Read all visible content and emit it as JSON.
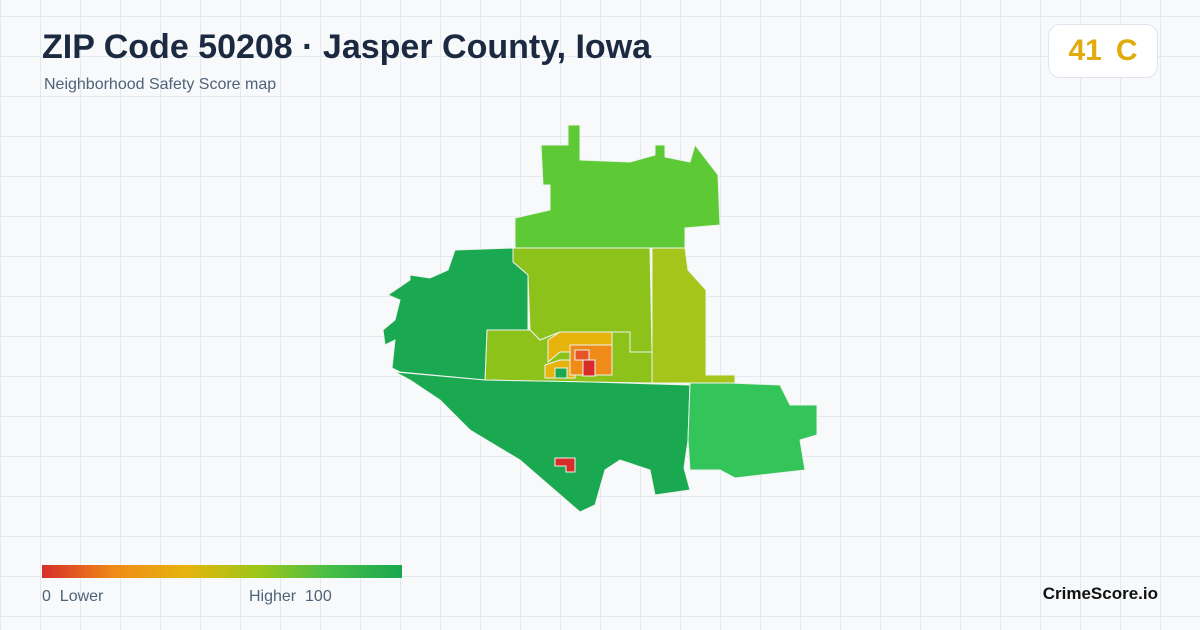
{
  "header": {
    "title": "ZIP Code 50208 · Jasper County, Iowa",
    "subtitle": "Neighborhood Safety Score map"
  },
  "score": {
    "value": 41,
    "grade": "C"
  },
  "legend": {
    "low_value": 0,
    "low_label": "Lower",
    "high_label": "Higher",
    "high_value": 100
  },
  "brand": "CrimeScore.io"
}
